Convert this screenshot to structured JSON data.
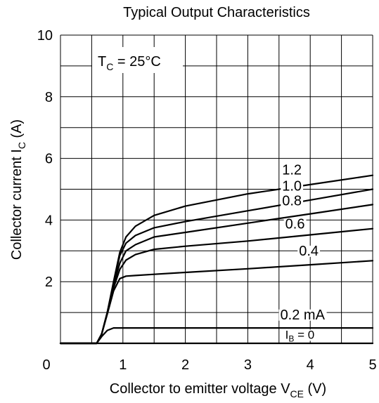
{
  "chart_data": {
    "type": "line",
    "title": "Typical Output Characteristics",
    "annotation": {
      "label_main": "T",
      "label_sub": "C",
      "label_rest": " = 25°C"
    },
    "xlabel": {
      "main": "Collector to emitter voltage  V",
      "sub": "CE",
      "unit": "  (V)"
    },
    "ylabel": {
      "main": "Collector current  I",
      "sub": "C",
      "unit": "  (A)"
    },
    "xlim": [
      0,
      5
    ],
    "ylim": [
      0,
      10
    ],
    "x_ticks": [
      "0",
      "1",
      "2",
      "3",
      "4",
      "5"
    ],
    "y_ticks": [
      "2",
      "4",
      "6",
      "8",
      "10"
    ],
    "grid": true,
    "series": [
      {
        "name": "1.2",
        "x": [
          0,
          0.58,
          0.66,
          0.75,
          0.85,
          0.95,
          1.05,
          1.2,
          1.5,
          2,
          3,
          4,
          5
        ],
        "y": [
          0,
          0,
          0.3,
          1.0,
          2.0,
          2.95,
          3.45,
          3.8,
          4.15,
          4.45,
          4.85,
          5.15,
          5.45
        ]
      },
      {
        "name": "1.0",
        "x": [
          0,
          0.58,
          0.66,
          0.75,
          0.85,
          0.95,
          1.05,
          1.2,
          1.5,
          2,
          3,
          4,
          5
        ],
        "y": [
          0,
          0,
          0.3,
          1.0,
          1.95,
          2.85,
          3.25,
          3.5,
          3.75,
          3.95,
          4.3,
          4.65,
          5.0
        ]
      },
      {
        "name": "0.8",
        "x": [
          0,
          0.58,
          0.66,
          0.75,
          0.85,
          0.95,
          1.05,
          1.2,
          1.5,
          2,
          3,
          4,
          5
        ],
        "y": [
          0,
          0,
          0.3,
          1.0,
          1.9,
          2.6,
          3.0,
          3.2,
          3.45,
          3.6,
          3.9,
          4.2,
          4.5
        ]
      },
      {
        "name": "0.6",
        "x": [
          0,
          0.58,
          0.66,
          0.75,
          0.85,
          0.95,
          1.05,
          1.2,
          1.5,
          2,
          3,
          4,
          5
        ],
        "y": [
          0,
          0,
          0.3,
          1.0,
          1.8,
          2.4,
          2.7,
          2.88,
          3.05,
          3.15,
          3.32,
          3.52,
          3.72
        ]
      },
      {
        "name": "0.4",
        "x": [
          0,
          0.58,
          0.66,
          0.75,
          0.85,
          0.95,
          1.05,
          1.2,
          1.5,
          2,
          3,
          4,
          5
        ],
        "y": [
          0,
          0,
          0.3,
          0.95,
          1.7,
          2.1,
          2.18,
          2.2,
          2.24,
          2.3,
          2.42,
          2.55,
          2.68
        ]
      },
      {
        "name": "0.2 mA",
        "x": [
          0,
          0.58,
          0.66,
          0.75,
          0.85,
          0.95,
          1.2,
          2,
          3,
          4,
          5
        ],
        "y": [
          0,
          0,
          0.22,
          0.42,
          0.5,
          0.5,
          0.5,
          0.5,
          0.5,
          0.5,
          0.5
        ]
      },
      {
        "name": "I_B = 0",
        "x": [
          0,
          5
        ],
        "y": [
          0,
          0
        ]
      }
    ],
    "curve_labels": [
      {
        "text": "1.2",
        "x": 3.55,
        "y": 5.48
      },
      {
        "text": "1.0",
        "x": 3.55,
        "y": 4.95
      },
      {
        "text": "0.8",
        "x": 3.55,
        "y": 4.48
      },
      {
        "text": "0.6",
        "x": 3.6,
        "y": 3.73
      },
      {
        "text": "0.4",
        "x": 3.82,
        "y": 2.85
      },
      {
        "text": "0.2 mA",
        "x": 3.52,
        "y": 0.78
      }
    ],
    "ib_zero_label": {
      "main": "I",
      "sub": "B",
      "rest": " = 0"
    }
  }
}
